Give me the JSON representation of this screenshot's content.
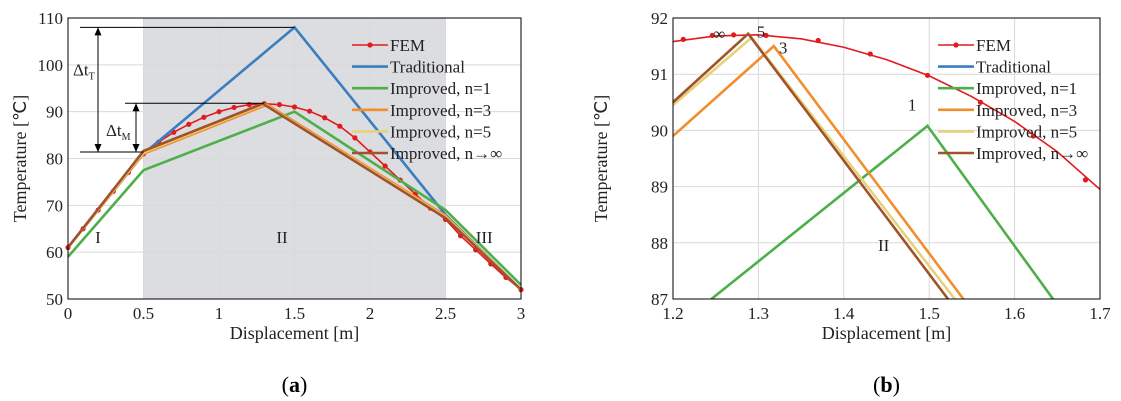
{
  "chart_data": [
    {
      "id": "a",
      "type": "line",
      "caption": "(a)",
      "xlabel": "Displacement [m]",
      "ylabel": "Temperature [℃]",
      "xlim": [
        0,
        3
      ],
      "ylim": [
        50,
        110
      ],
      "xticks": [
        0,
        0.5,
        1,
        1.5,
        2,
        2.5,
        3
      ],
      "yticks": [
        50,
        60,
        70,
        80,
        90,
        100,
        110
      ],
      "grid": true,
      "shaded_region": {
        "x": [
          0.5,
          2.5
        ],
        "color": "#dcdde0"
      },
      "legend_position": "top-right",
      "series": [
        {
          "name": "FEM",
          "color": "#e31a1c",
          "marker": "dot",
          "x": [
            0,
            0.1,
            0.2,
            0.3,
            0.4,
            0.5,
            0.6,
            0.7,
            0.8,
            0.9,
            1.0,
            1.1,
            1.2,
            1.3,
            1.4,
            1.5,
            1.6,
            1.7,
            1.8,
            1.9,
            2.0,
            2.1,
            2.2,
            2.3,
            2.4,
            2.5,
            2.6,
            2.7,
            2.8,
            2.9,
            3.0
          ],
          "y": [
            61,
            65,
            69,
            73,
            77,
            81,
            83.5,
            85.6,
            87.3,
            88.8,
            90,
            90.9,
            91.5,
            91.7,
            91.5,
            91.0,
            90.1,
            88.7,
            86.9,
            84.4,
            81.4,
            78.4,
            75.4,
            72.4,
            69.4,
            67,
            63.5,
            60.5,
            57.5,
            54.6,
            52
          ]
        },
        {
          "name": "Traditional",
          "color": "#3b7dbf",
          "x": [
            0,
            0.5,
            1.5,
            2.5,
            3
          ],
          "y": [
            61,
            81,
            108,
            68,
            52
          ]
        },
        {
          "name": "Improved, n=1",
          "color": "#4daf4a",
          "x": [
            0,
            0.5,
            1.5,
            2.5,
            3
          ],
          "y": [
            59,
            77.5,
            90,
            69,
            53
          ]
        },
        {
          "name": "Improved, n=3",
          "color": "#f28e2b",
          "x": [
            0,
            0.5,
            1.32,
            2.5,
            3
          ],
          "y": [
            61,
            81,
            91.5,
            67.8,
            52
          ]
        },
        {
          "name": "Improved, n=5",
          "color": "#e6d27a",
          "x": [
            0,
            0.5,
            1.3,
            2.5,
            3
          ],
          "y": [
            61,
            81.3,
            91.6,
            67.5,
            52
          ]
        },
        {
          "name": "Improved, n→∞",
          "color": "#a0522d",
          "x": [
            0,
            0.5,
            1.29,
            2.5,
            3
          ],
          "y": [
            61,
            81.6,
            91.7,
            67.3,
            52
          ]
        }
      ],
      "annotations": {
        "regions": [
          "I",
          "II",
          "III"
        ],
        "delta_T": "Δt",
        "delta_T_sub": "T",
        "delta_M": "Δt",
        "delta_M_sub": "M"
      }
    },
    {
      "id": "b",
      "type": "line",
      "caption": "(b)",
      "xlabel": "Displacement [m]",
      "ylabel": "Temperature [℃]",
      "xlim": [
        1.2,
        1.7
      ],
      "ylim": [
        87,
        92
      ],
      "xticks": [
        1.2,
        1.3,
        1.4,
        1.5,
        1.6,
        1.7
      ],
      "yticks": [
        87,
        88,
        89,
        90,
        91,
        92
      ],
      "grid": true,
      "legend_position": "top-right",
      "series": [
        {
          "name": "FEM",
          "color": "#e31a1c",
          "marker": "dot",
          "x": [
            1.2,
            1.25,
            1.3,
            1.35,
            1.4,
            1.45,
            1.5,
            1.55,
            1.6,
            1.65,
            1.7
          ],
          "y": [
            91.58,
            91.68,
            91.7,
            91.63,
            91.48,
            91.26,
            90.97,
            90.6,
            90.16,
            89.62,
            88.95
          ],
          "marker_x": [
            1.212,
            1.246,
            1.271,
            1.309,
            1.37,
            1.431,
            1.498,
            1.56,
            1.622,
            1.683
          ],
          "marker_y": [
            91.62,
            91.69,
            91.7,
            91.69,
            91.6,
            91.36,
            90.98,
            90.5,
            89.9,
            89.12
          ]
        },
        {
          "name": "Traditional",
          "color": "#3b7dbf",
          "x": [],
          "y": []
        },
        {
          "name": "Improved, n=1",
          "color": "#4daf4a",
          "x": [
            1.245,
            1.498,
            1.645
          ],
          "y": [
            87,
            90.08,
            87
          ]
        },
        {
          "name": "Improved, n=3",
          "color": "#f28e2b",
          "x": [
            1.2,
            1.318,
            1.54
          ],
          "y": [
            89.9,
            91.5,
            87
          ]
        },
        {
          "name": "Improved, n=5",
          "color": "#e6d27a",
          "x": [
            1.2,
            1.292,
            1.53
          ],
          "y": [
            90.45,
            91.65,
            87
          ]
        },
        {
          "name": "Improved, n→∞",
          "color": "#a0522d",
          "x": [
            1.2,
            1.288,
            1.522
          ],
          "y": [
            90.5,
            91.72,
            87
          ]
        }
      ],
      "annotations": {
        "region": "II",
        "curve_labels": [
          "∞",
          "5",
          "3",
          "1"
        ]
      }
    }
  ]
}
